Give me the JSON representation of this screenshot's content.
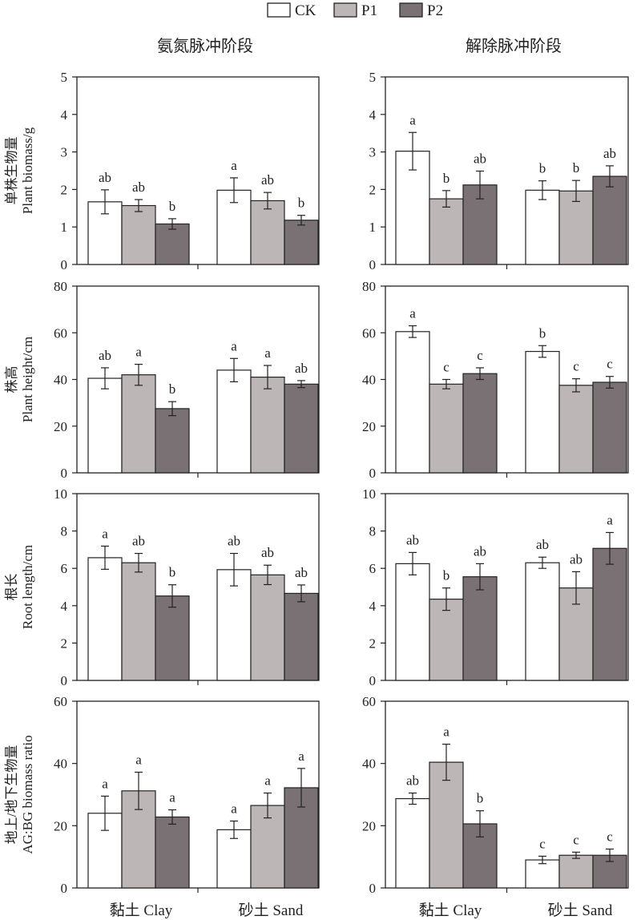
{
  "legend": {
    "items": [
      {
        "name": "CK",
        "color": "#ffffff"
      },
      {
        "name": "P1",
        "color": "#bdb6b6"
      },
      {
        "name": "P2",
        "color": "#7a7174"
      }
    ]
  },
  "columns": [
    "氨氮脉冲阶段",
    "解除脉冲阶段"
  ],
  "categories": [
    "黏土 Clay",
    "砂土 Sand"
  ],
  "rows": [
    {
      "ylabel_cn": "单株生物量",
      "ylabel_en": "Plant biomass/g"
    },
    {
      "ylabel_cn": "株高",
      "ylabel_en": "Plant height/cm"
    },
    {
      "ylabel_cn": "根长",
      "ylabel_en": "Root length/cm"
    },
    {
      "ylabel_cn": "地上/地下生物量",
      "ylabel_en": "AG:BG biomass ratio"
    }
  ],
  "chart_data": [
    {
      "type": "bar",
      "row": 0,
      "col": 0,
      "ylim": [
        0,
        5
      ],
      "yticks": [
        0,
        1,
        2,
        3,
        4,
        5
      ],
      "categories": [
        "黏土 Clay",
        "砂土 Sand"
      ],
      "series": [
        {
          "name": "CK",
          "values": [
            1.67,
            1.98
          ],
          "err": [
            0.32,
            0.33
          ],
          "sig": [
            "ab",
            "a"
          ]
        },
        {
          "name": "P1",
          "values": [
            1.57,
            1.7
          ],
          "err": [
            0.16,
            0.22
          ],
          "sig": [
            "ab",
            "ab"
          ]
        },
        {
          "name": "P2",
          "values": [
            1.08,
            1.18
          ],
          "err": [
            0.14,
            0.13
          ],
          "sig": [
            "b",
            "b"
          ]
        }
      ]
    },
    {
      "type": "bar",
      "row": 0,
      "col": 1,
      "ylim": [
        0,
        5
      ],
      "yticks": [
        0,
        1,
        2,
        3,
        4,
        5
      ],
      "categories": [
        "黏土 Clay",
        "砂土 Sand"
      ],
      "series": [
        {
          "name": "CK",
          "values": [
            3.02,
            1.98
          ],
          "err": [
            0.5,
            0.25
          ],
          "sig": [
            "a",
            "b"
          ]
        },
        {
          "name": "P1",
          "values": [
            1.75,
            1.96
          ],
          "err": [
            0.22,
            0.28
          ],
          "sig": [
            "b",
            "b"
          ]
        },
        {
          "name": "P2",
          "values": [
            2.12,
            2.35
          ],
          "err": [
            0.37,
            0.28
          ],
          "sig": [
            "ab",
            "ab"
          ]
        }
      ]
    },
    {
      "type": "bar",
      "row": 1,
      "col": 0,
      "ylim": [
        0,
        80
      ],
      "yticks": [
        0,
        20,
        40,
        60,
        80
      ],
      "categories": [
        "黏土 Clay",
        "砂土 Sand"
      ],
      "series": [
        {
          "name": "CK",
          "values": [
            40.5,
            44.0
          ],
          "err": [
            4.5,
            5.0
          ],
          "sig": [
            "ab",
            "a"
          ]
        },
        {
          "name": "P1",
          "values": [
            42.0,
            41.0
          ],
          "err": [
            4.5,
            5.0
          ],
          "sig": [
            "a",
            "a"
          ]
        },
        {
          "name": "P2",
          "values": [
            27.5,
            38.0
          ],
          "err": [
            3.0,
            1.5
          ],
          "sig": [
            "b",
            "ab"
          ]
        }
      ]
    },
    {
      "type": "bar",
      "row": 1,
      "col": 1,
      "ylim": [
        0,
        80
      ],
      "yticks": [
        0,
        20,
        40,
        60,
        80
      ],
      "categories": [
        "黏土 Clay",
        "砂土 Sand"
      ],
      "series": [
        {
          "name": "CK",
          "values": [
            60.5,
            52.0
          ],
          "err": [
            2.5,
            2.5
          ],
          "sig": [
            "a",
            "b"
          ]
        },
        {
          "name": "P1",
          "values": [
            38.0,
            37.5
          ],
          "err": [
            2.0,
            2.8
          ],
          "sig": [
            "c",
            "c"
          ]
        },
        {
          "name": "P2",
          "values": [
            42.5,
            38.8
          ],
          "err": [
            2.5,
            2.5
          ],
          "sig": [
            "c",
            "c"
          ]
        }
      ]
    },
    {
      "type": "bar",
      "row": 2,
      "col": 0,
      "ylim": [
        0,
        10
      ],
      "yticks": [
        0,
        2,
        4,
        6,
        8,
        10
      ],
      "categories": [
        "黏土 Clay",
        "砂土 Sand"
      ],
      "series": [
        {
          "name": "CK",
          "values": [
            6.57,
            5.93
          ],
          "err": [
            0.62,
            0.87
          ],
          "sig": [
            "a",
            "ab"
          ]
        },
        {
          "name": "P1",
          "values": [
            6.3,
            5.65
          ],
          "err": [
            0.5,
            0.52
          ],
          "sig": [
            "ab",
            "ab"
          ]
        },
        {
          "name": "P2",
          "values": [
            4.52,
            4.66
          ],
          "err": [
            0.6,
            0.45
          ],
          "sig": [
            "b",
            "ab"
          ]
        }
      ]
    },
    {
      "type": "bar",
      "row": 2,
      "col": 1,
      "ylim": [
        0,
        10
      ],
      "yticks": [
        0,
        2,
        4,
        6,
        8,
        10
      ],
      "categories": [
        "黏土 Clay",
        "砂土 Sand"
      ],
      "series": [
        {
          "name": "CK",
          "values": [
            6.25,
            6.3
          ],
          "err": [
            0.6,
            0.3
          ],
          "sig": [
            "ab",
            "ab"
          ]
        },
        {
          "name": "P1",
          "values": [
            4.35,
            4.95
          ],
          "err": [
            0.6,
            0.87
          ],
          "sig": [
            "b",
            "ab"
          ]
        },
        {
          "name": "P2",
          "values": [
            5.55,
            7.07
          ],
          "err": [
            0.7,
            0.85
          ],
          "sig": [
            "ab",
            "a"
          ]
        }
      ]
    },
    {
      "type": "bar",
      "row": 3,
      "col": 0,
      "ylim": [
        0,
        60
      ],
      "yticks": [
        0,
        20,
        40,
        60
      ],
      "categories": [
        "黏土 Clay",
        "砂土 Sand"
      ],
      "series": [
        {
          "name": "CK",
          "values": [
            24.0,
            18.7
          ],
          "err": [
            5.5,
            2.8
          ],
          "sig": [
            "a",
            "a"
          ]
        },
        {
          "name": "P1",
          "values": [
            31.2,
            26.5
          ],
          "err": [
            6.0,
            4.0
          ],
          "sig": [
            "a",
            "a"
          ]
        },
        {
          "name": "P2",
          "values": [
            22.8,
            32.2
          ],
          "err": [
            2.3,
            6.2
          ],
          "sig": [
            "a",
            "a"
          ]
        }
      ]
    },
    {
      "type": "bar",
      "row": 3,
      "col": 1,
      "ylim": [
        0,
        60
      ],
      "yticks": [
        0,
        20,
        40,
        60
      ],
      "categories": [
        "黏土 Clay",
        "砂土 Sand"
      ],
      "series": [
        {
          "name": "CK",
          "values": [
            28.7,
            9.0
          ],
          "err": [
            1.8,
            1.2
          ],
          "sig": [
            "ab",
            "c"
          ]
        },
        {
          "name": "P1",
          "values": [
            40.4,
            10.5
          ],
          "err": [
            5.8,
            1.0
          ],
          "sig": [
            "a",
            "c"
          ]
        },
        {
          "name": "P2",
          "values": [
            20.6,
            10.5
          ],
          "err": [
            4.2,
            2.0
          ],
          "sig": [
            "b",
            "c"
          ]
        }
      ]
    }
  ]
}
